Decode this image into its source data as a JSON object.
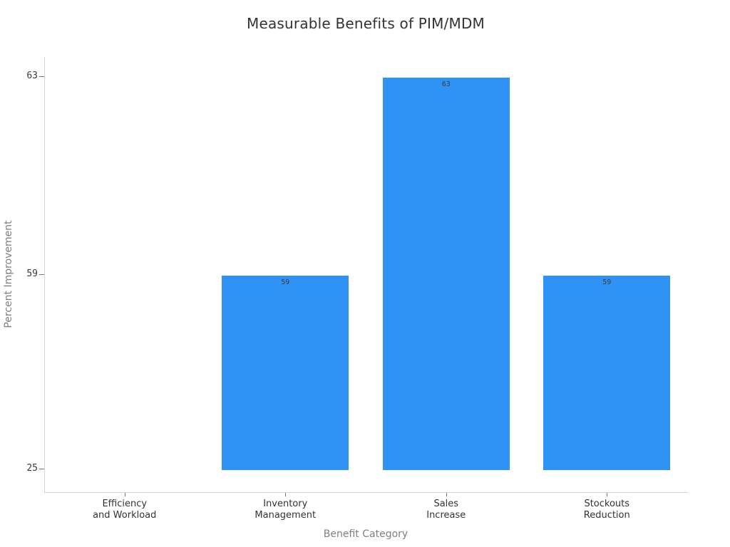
{
  "chart": {
    "title": "Measurable Benefits of PIM/MDM"
  },
  "chart_data": {
    "type": "bar",
    "title": "Measurable Benefits of PIM/MDM",
    "xlabel": "Benefit Category",
    "ylabel": "Percent Improvement",
    "categories": [
      "Efficiency and Workload",
      "Inventory Management",
      "Sales Increase",
      "Stockouts Reduction"
    ],
    "category_label_lines": [
      [
        "Efficiency",
        "and Workload"
      ],
      [
        "Inventory",
        "Management"
      ],
      [
        "Sales",
        "Increase"
      ],
      [
        "Stockouts",
        "Reduction"
      ]
    ],
    "values": [
      25,
      59,
      63,
      59
    ],
    "bar_value_labels": [
      null,
      "59",
      "63",
      "59"
    ],
    "y_ticks": [
      25,
      59,
      63
    ],
    "baseline_value": 25,
    "bar_color": "#2E93F5",
    "grid": false,
    "legend_position": "none",
    "colors": {
      "title_text": "#333333",
      "axis_title_text": "#7f7f7f",
      "tick_label_text": "#3a3a3a",
      "bar_label_text": "#3c3c3c",
      "spine": "#d4d4d4"
    }
  }
}
